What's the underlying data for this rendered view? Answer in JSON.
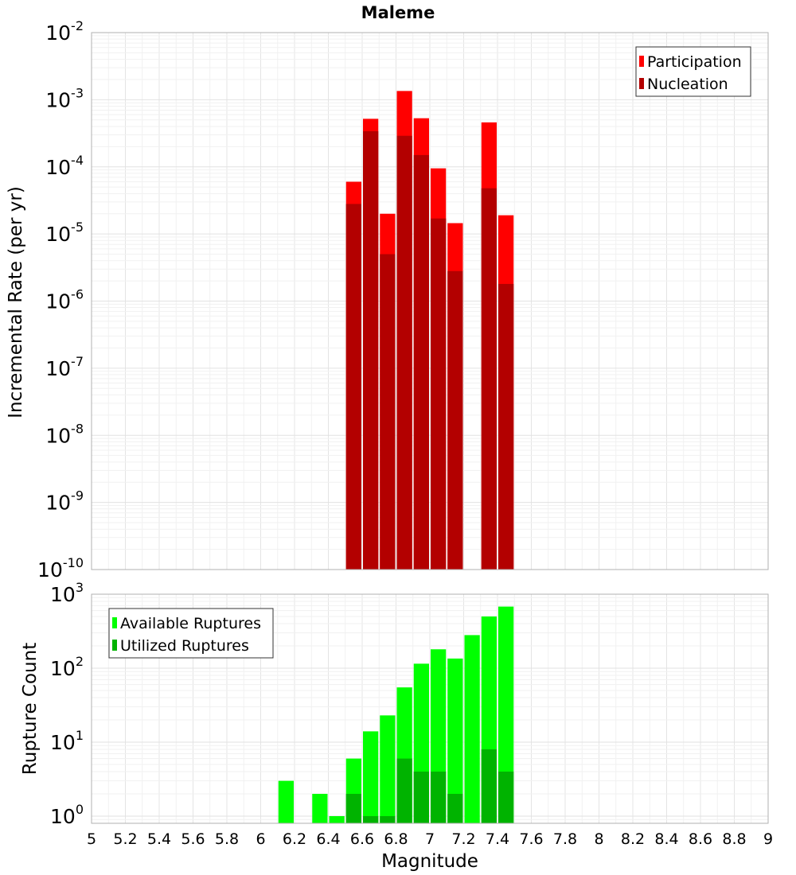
{
  "chart_data": [
    {
      "type": "bar",
      "title": "Maleme",
      "xlabel": "",
      "ylabel": "Incremental Rate (per yr)",
      "yscale": "log",
      "xlim": [
        5,
        9
      ],
      "ylim": [
        1e-10,
        0.01
      ],
      "y_tick_exponents": [
        -10,
        -9,
        -8,
        -7,
        -6,
        -5,
        -4,
        -3,
        -2
      ],
      "y_tick_base": "10",
      "grid": true,
      "legend": "top-right",
      "x": [
        6.55,
        6.65,
        6.75,
        6.85,
        6.95,
        7.05,
        7.15,
        7.35,
        7.45
      ],
      "series": [
        {
          "name": "Participation",
          "color": "#ff0000",
          "values": [
            6e-05,
            0.00052,
            2e-05,
            0.00135,
            0.00053,
            9.5e-05,
            1.45e-05,
            0.00046,
            1.9e-05
          ]
        },
        {
          "name": "Nucleation",
          "color": "#b30000",
          "values": [
            2.8e-05,
            0.00034,
            5e-06,
            0.00029,
            0.00015,
            1.7e-05,
            2.8e-06,
            4.8e-05,
            1.8e-06
          ]
        }
      ]
    },
    {
      "type": "bar",
      "title": "",
      "xlabel": "Magnitude",
      "ylabel": "Rupture Count",
      "yscale": "log",
      "xlim": [
        5,
        9
      ],
      "ylim": [
        0.8,
        1000
      ],
      "y_tick_exponents": [
        0,
        1,
        2,
        3
      ],
      "y_tick_base": "10",
      "x_ticks": [
        "5",
        "5.2",
        "5.4",
        "5.6",
        "5.8",
        "6",
        "6.2",
        "6.4",
        "6.6",
        "6.8",
        "7",
        "7.2",
        "7.4",
        "7.6",
        "7.8",
        "8",
        "8.2",
        "8.4",
        "8.6",
        "8.8",
        "9"
      ],
      "grid": true,
      "legend": "top-left",
      "x": [
        6.15,
        6.35,
        6.45,
        6.55,
        6.65,
        6.75,
        6.85,
        6.95,
        7.05,
        7.15,
        7.25,
        7.35,
        7.45
      ],
      "series": [
        {
          "name": "Available Ruptures",
          "color": "#00ff00",
          "values": [
            3,
            2,
            1,
            6,
            14,
            23,
            55,
            115,
            180,
            135,
            280,
            500,
            680
          ]
        },
        {
          "name": "Utilized Ruptures",
          "color": "#00b300",
          "values": [
            null,
            null,
            null,
            2,
            1,
            1,
            6,
            4,
            4,
            2,
            null,
            8,
            4
          ]
        }
      ]
    }
  ]
}
